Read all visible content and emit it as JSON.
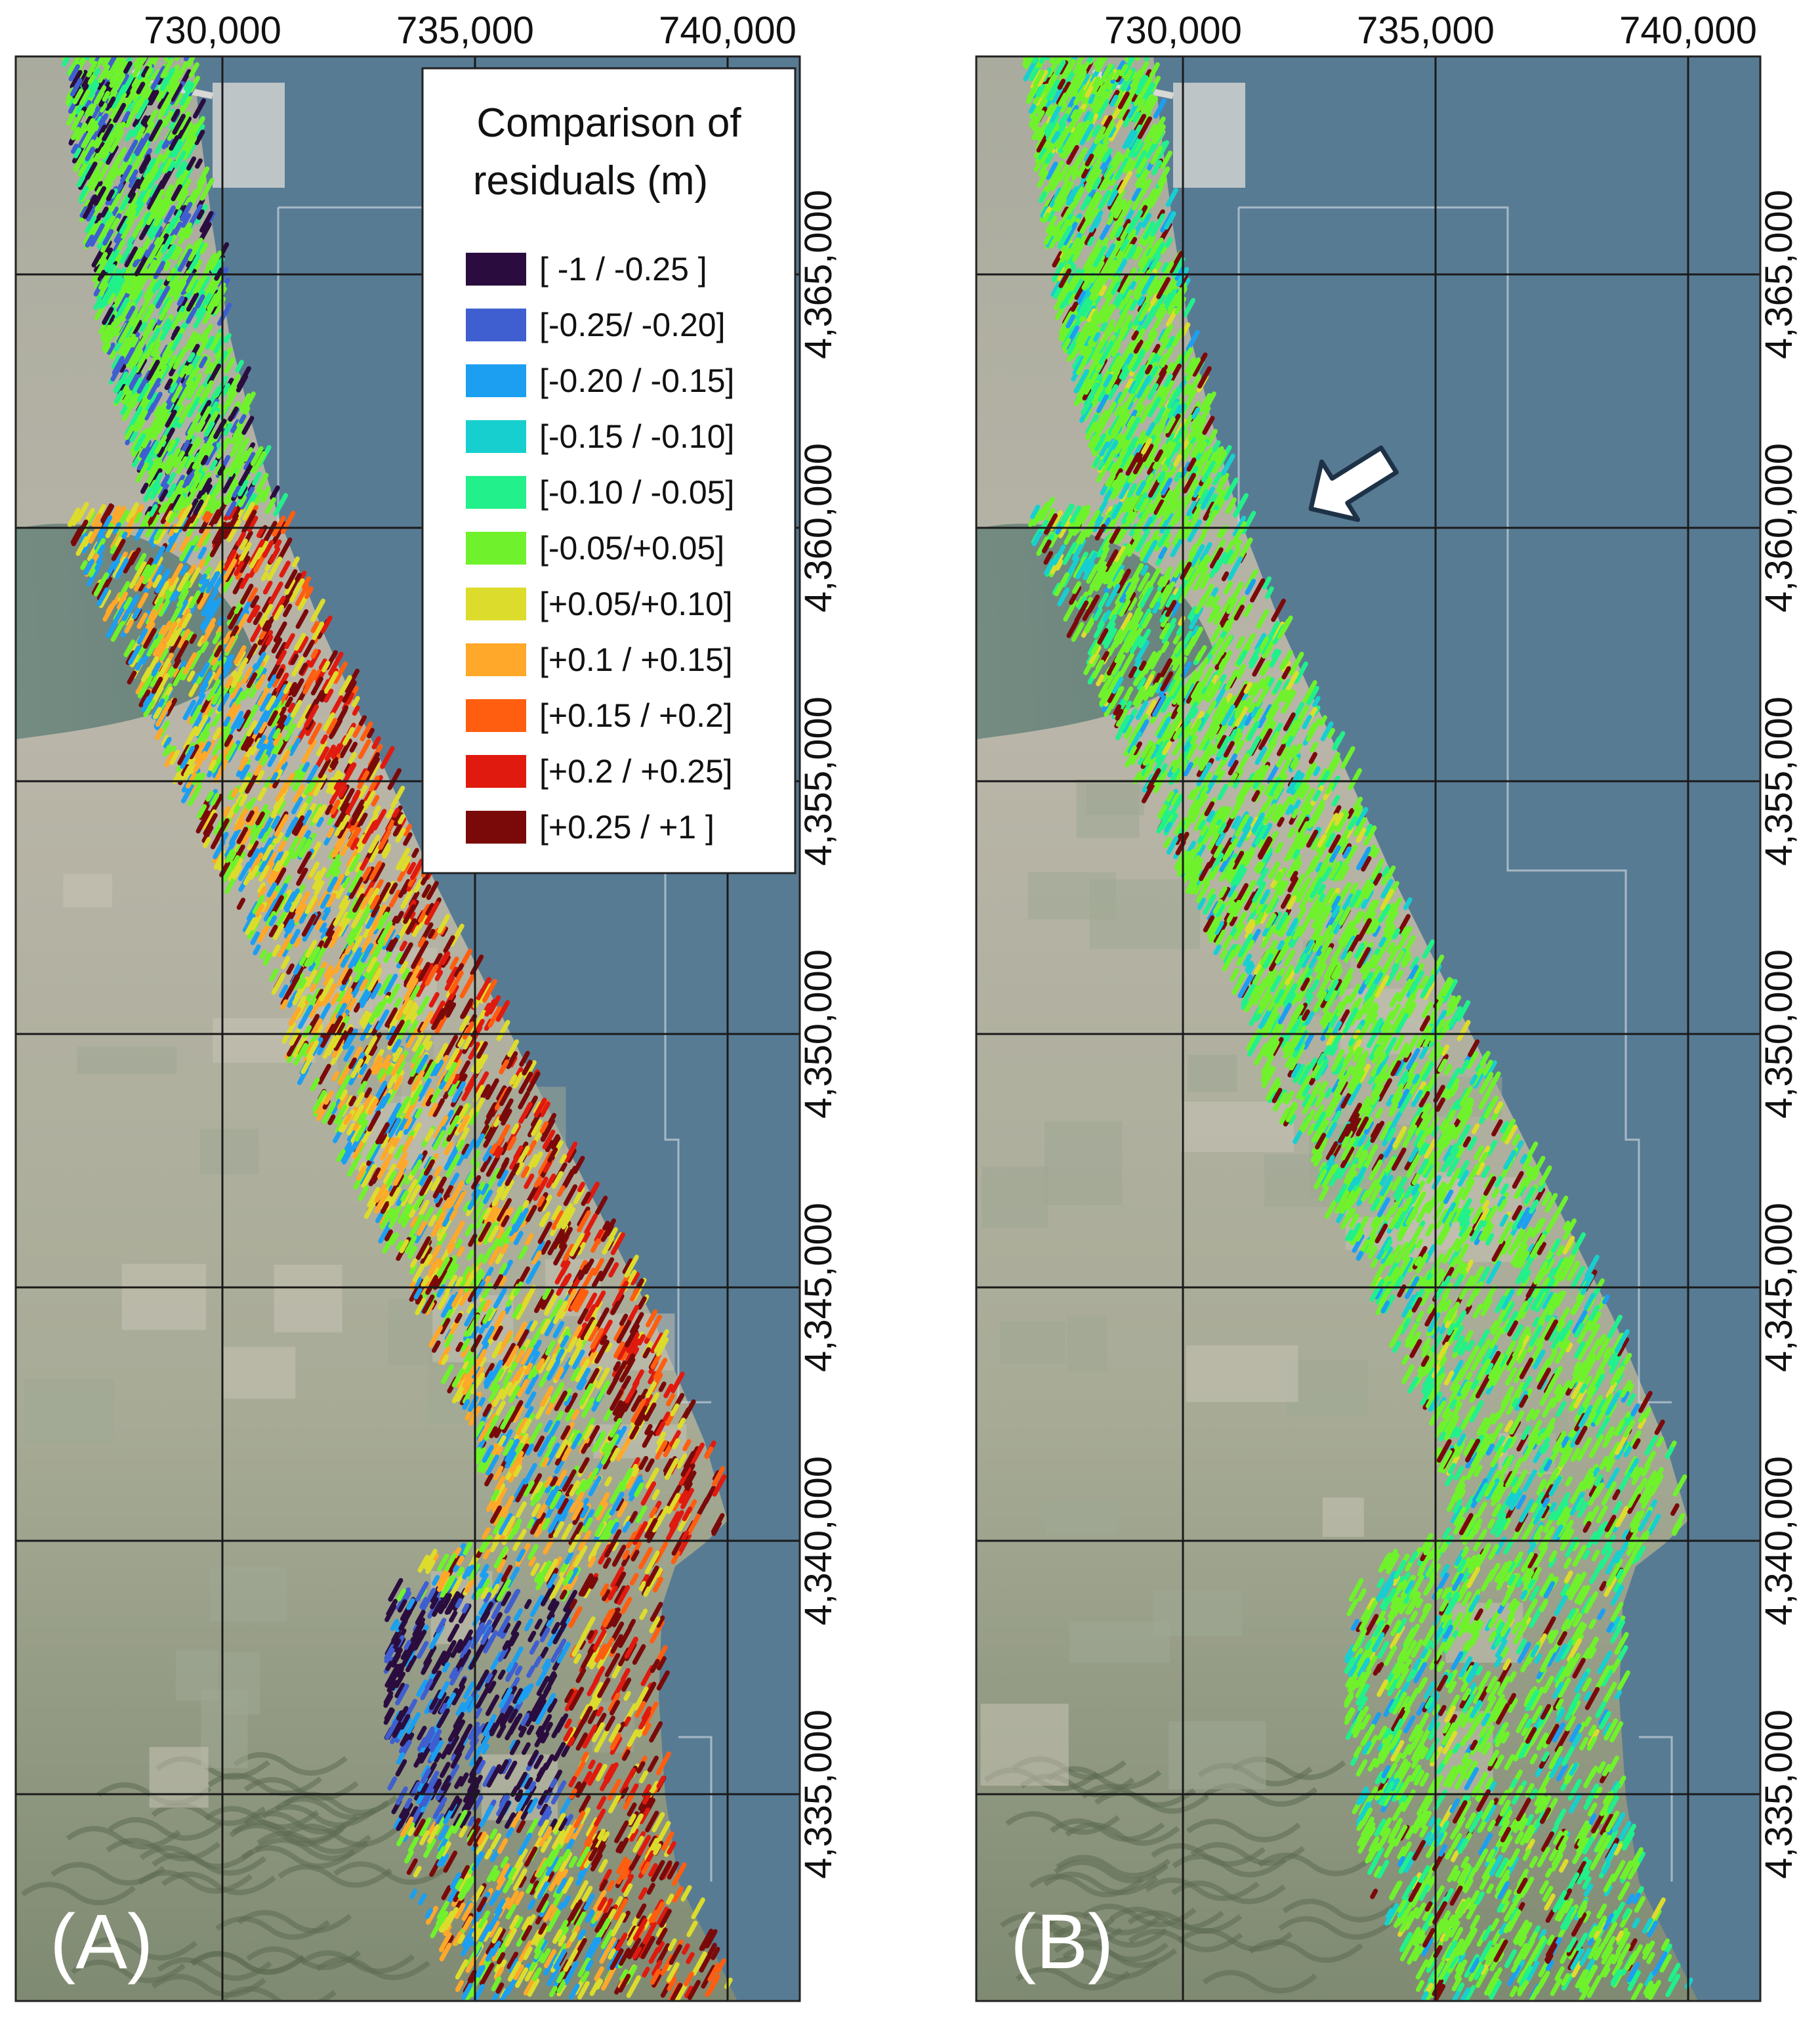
{
  "figure": {
    "panels": [
      {
        "id": "A",
        "tag": "(A)",
        "x_ticks": [
          "730000",
          "735000",
          "740000"
        ],
        "y_ticks": [
          "4365000",
          "4360000",
          "4355000",
          "4350000",
          "4345000",
          "4340000",
          "4335000"
        ],
        "has_arrow": false
      },
      {
        "id": "B",
        "tag": "(B)",
        "x_ticks": [
          "730000",
          "735000",
          "740000"
        ],
        "y_ticks": [
          "4365000",
          "4360000",
          "4355000",
          "4350000",
          "4345000",
          "4340000",
          "4335000"
        ],
        "has_arrow": true
      }
    ],
    "legend": {
      "title_line1": "Comparison of",
      "title_line2": "residuals (m)",
      "items": [
        {
          "label": "[  -1   /  -0.25 ]",
          "color": "#2a0d3e"
        },
        {
          "label": "[-0.25/  -0.20]",
          "color": "#3f5fd0"
        },
        {
          "label": "[-0.20 / -0.15]",
          "color": "#1c9ff0"
        },
        {
          "label": "[-0.15 / -0.10]",
          "color": "#18cfcf"
        },
        {
          "label": "[-0.10 / -0.05]",
          "color": "#22f08a"
        },
        {
          "label": "[-0.05/+0.05]",
          "color": "#6ff22c"
        },
        {
          "label": "[+0.05/+0.10]",
          "color": "#dcdc2c"
        },
        {
          "label": "[+0.1 / +0.15]",
          "color": "#ffa82a"
        },
        {
          "label": "[+0.15 / +0.2]",
          "color": "#ff5e10"
        },
        {
          "label": "[+0.2 / +0.25]",
          "color": "#e01a0e"
        },
        {
          "label": "[+0.25 /   +1 ]",
          "color": "#7a0a0a"
        }
      ]
    },
    "colors": {
      "sea": "#587b94",
      "land": "#b3b0a5",
      "grid": "#1a1a1a"
    }
  }
}
